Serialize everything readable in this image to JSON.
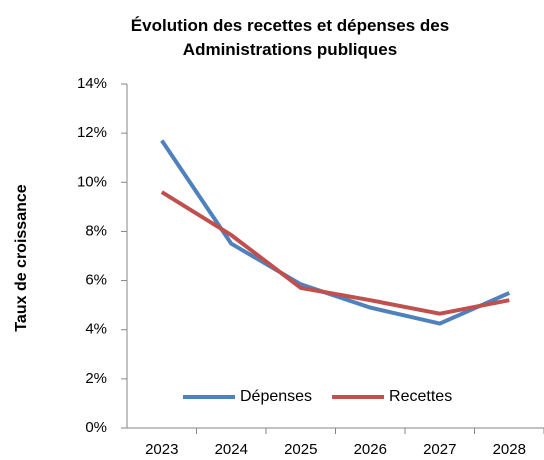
{
  "chart_data": {
    "type": "line",
    "title": "Évolution des recettes et dépenses des Administrations publiques",
    "y_label": "Taux de croissance",
    "categories": [
      "2023",
      "2024",
      "2025",
      "2026",
      "2027",
      "2028"
    ],
    "series": [
      {
        "name": "Dépenses",
        "color": "#4f81bd",
        "values": [
          11.7,
          7.5,
          5.85,
          4.9,
          4.25,
          5.5
        ]
      },
      {
        "name": "Recettes",
        "color": "#c0504d",
        "values": [
          9.6,
          7.85,
          5.7,
          5.2,
          4.65,
          5.2
        ]
      }
    ],
    "ylim": [
      0,
      14
    ],
    "yticks": [
      {
        "value": 0,
        "label": "0%"
      },
      {
        "value": 2,
        "label": "2%"
      },
      {
        "value": 4,
        "label": "4%"
      },
      {
        "value": 6,
        "label": "6%"
      },
      {
        "value": 8,
        "label": "8%"
      },
      {
        "value": 10,
        "label": "10%"
      },
      {
        "value": 12,
        "label": "12%"
      },
      {
        "value": 14,
        "label": "14%"
      }
    ],
    "grid": false,
    "legend": "bottom"
  }
}
